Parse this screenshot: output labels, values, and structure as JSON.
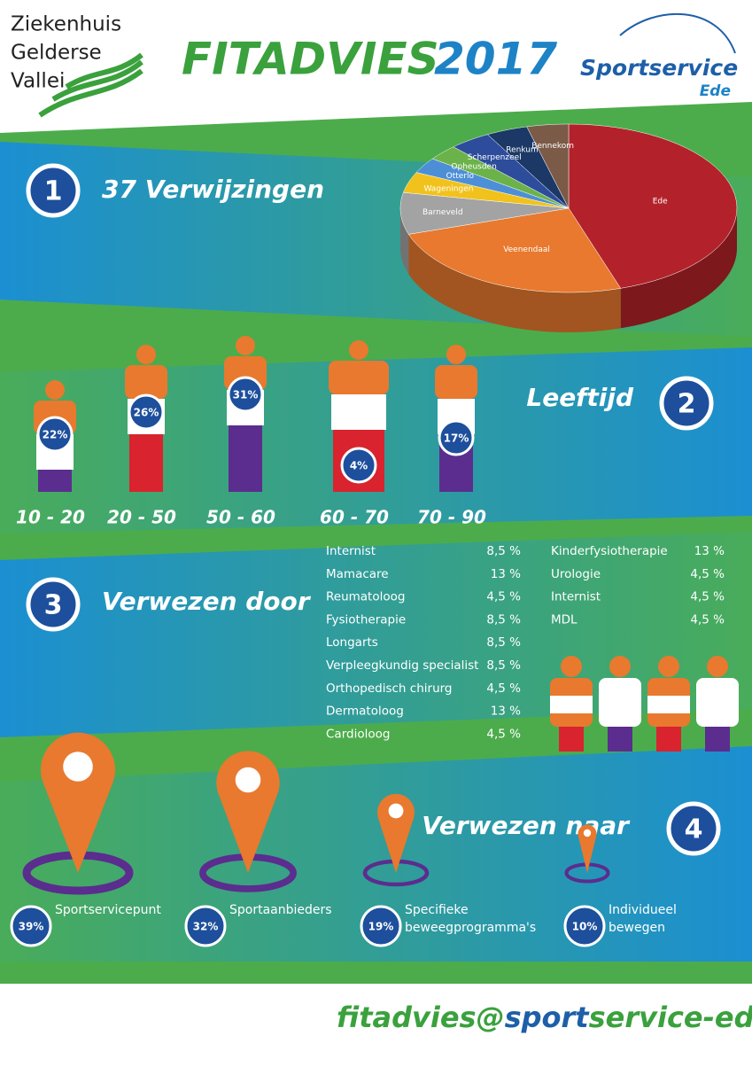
{
  "header": {
    "org_left": [
      "Ziekenhuis",
      "Gelderse",
      "Vallei"
    ],
    "title": "FITADVIES",
    "year": "2017",
    "org_right": "Sportservice",
    "org_right_sub": "Ede"
  },
  "section1": {
    "number": "1",
    "title": "37 Verwijzingen"
  },
  "chart_data": {
    "type": "pie",
    "categories": [
      "Ede",
      "Veenendaal",
      "Barneveld",
      "Wageningen",
      "Otterlo",
      "Opheusden",
      "Scherpenzeel",
      "Renkum",
      "Bennekom"
    ],
    "values": [
      45,
      25,
      8,
      4,
      3,
      3,
      4,
      4,
      4
    ],
    "colors": [
      "#b3222a",
      "#e8792e",
      "#a3a3a3",
      "#f2c21c",
      "#4d8fd6",
      "#6cb24a",
      "#2d4c9c",
      "#1b3866",
      "#7b5a48"
    ]
  },
  "section2": {
    "number": "2",
    "title": "Leeftijd",
    "groups": [
      {
        "range": "10 - 20",
        "percent": "22%"
      },
      {
        "range": "20 - 50",
        "percent": "26%"
      },
      {
        "range": "50 - 60",
        "percent": "31%"
      },
      {
        "range": "60 - 70",
        "percent": "4%"
      },
      {
        "range": "70 - 90",
        "percent": "17%"
      }
    ]
  },
  "section3": {
    "number": "3",
    "title": "Verwezen door",
    "referrers": [
      {
        "name": "Internist",
        "share": "8,5 %"
      },
      {
        "name": "Mamacare",
        "share": "13 %"
      },
      {
        "name": "Reumatoloog",
        "share": "4,5 %"
      },
      {
        "name": "Fysiotherapie",
        "share": "8,5 %"
      },
      {
        "name": "Longarts",
        "share": "8,5 %"
      },
      {
        "name": "Verpleegkundig specialist",
        "share": "8,5 %"
      },
      {
        "name": "Orthopedisch chirurg",
        "share": "4,5 %"
      },
      {
        "name": "Dermatoloog",
        "share": "13 %"
      },
      {
        "name": "Cardioloog",
        "share": "4,5 %"
      },
      {
        "name": "Kinderfysiotherapie",
        "share": "13 %"
      },
      {
        "name": "Urologie",
        "share": "4,5 %"
      },
      {
        "name": "Internist",
        "share": "4,5 %"
      },
      {
        "name": "MDL",
        "share": "4,5 %"
      }
    ]
  },
  "section4": {
    "number": "4",
    "title": "Verwezen naar",
    "destinations": [
      {
        "label": [
          "Sportservicepunt"
        ],
        "percent": "39%"
      },
      {
        "label": [
          "Sportaanbieders"
        ],
        "percent": "32%"
      },
      {
        "label": [
          "Specifieke",
          "beweegprogramma's"
        ],
        "percent": "19%"
      },
      {
        "label": [
          "Individueel",
          "bewegen"
        ],
        "percent": "10%"
      }
    ]
  },
  "footer": {
    "email_a": "fitadvies@",
    "email_b": "sport",
    "email_c": "service-ede.nl"
  }
}
